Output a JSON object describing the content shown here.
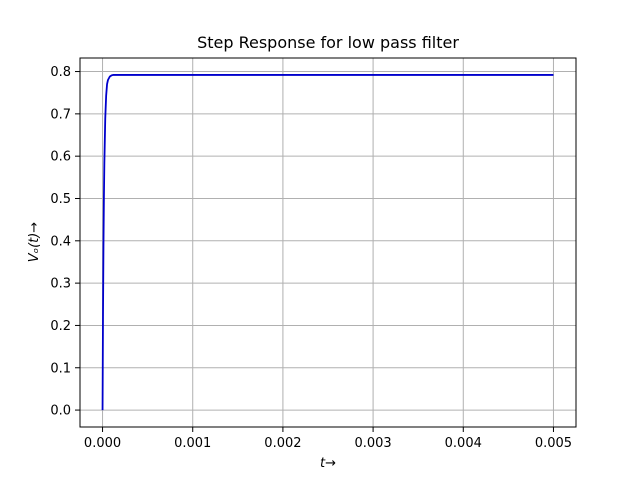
{
  "chart_data": {
    "type": "line",
    "title": "Step Response for low pass filter",
    "xlabel": "t→",
    "ylabel": "Vₒ(t)→",
    "xlim": [
      -0.00025,
      0.00525
    ],
    "ylim": [
      -0.04,
      0.832
    ],
    "xticks": [
      0.0,
      0.001,
      0.002,
      0.003,
      0.004,
      0.005
    ],
    "xtick_labels": [
      "0.000",
      "0.001",
      "0.002",
      "0.003",
      "0.004",
      "0.005"
    ],
    "yticks": [
      0.0,
      0.1,
      0.2,
      0.3,
      0.4,
      0.5,
      0.6,
      0.7,
      0.8
    ],
    "ytick_labels": [
      "0.0",
      "0.1",
      "0.2",
      "0.3",
      "0.4",
      "0.5",
      "0.6",
      "0.7",
      "0.8"
    ],
    "grid": true,
    "series": [
      {
        "color": "#0000cc",
        "x": [
          0.0,
          5e-06,
          1e-05,
          1.5e-05,
          2e-05,
          3e-05,
          4e-05,
          5e-05,
          6e-05,
          8e-05,
          0.0001,
          0.00012,
          0.00015,
          0.0002,
          0.0003,
          0.0005,
          0.001,
          0.002,
          0.003,
          0.004,
          0.005
        ],
        "y": [
          0.0,
          0.225,
          0.386,
          0.501,
          0.583,
          0.689,
          0.743,
          0.77,
          0.78,
          0.788,
          0.791,
          0.792,
          0.792,
          0.792,
          0.792,
          0.792,
          0.792,
          0.792,
          0.792,
          0.792,
          0.792
        ]
      }
    ]
  }
}
